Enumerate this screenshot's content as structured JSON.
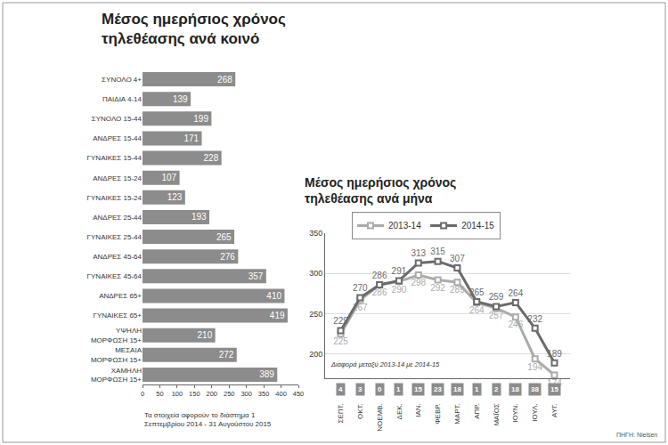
{
  "chart_data": [
    {
      "type": "bar",
      "orientation": "horizontal",
      "title": "Μέσος ημερήσιος χρόνος τηλεθέασης ανά κοινό",
      "note": "Τα στοιχεία αφορούν το διάστημα 1 Σεπτεμβρίου 2014 - 31 Αυγούστου 2015",
      "categories": [
        "ΣΥΝΟΛΟ 4+",
        "ΠΑΙΔΙΑ 4-14",
        "ΣΥΝΟΛΟ 15-44",
        "ΑΝΔΡΕΣ 15-44",
        "ΓΥΝΑΙΚΕΣ 15-44",
        "ΑΝΔΡΕΣ 15-24",
        "ΓΥΝΑΙΚΕΣ 15-24",
        "ΑΝΔΡΕΣ 25-44",
        "ΓΥΝΑΙΚΕΣ 25-44",
        "ΑΝΔΡΕΣ 45-64",
        "ΓΥΝΑΙΚΕΣ 45-64",
        "ΑΝΔΡΕΣ 65+",
        "ΓΥΝΑΙΚΕΣ 65+",
        "ΥΨΗΛΗ ΜΟΡΦΩΣΗ 15+",
        "ΜΕΣΑΙΑ ΜΟΡΦΩΣΗ 15+",
        "ΧΑΜΗΛΗ ΜΟΡΦΩΣΗ 15+"
      ],
      "values": [
        268,
        139,
        199,
        171,
        228,
        107,
        123,
        193,
        265,
        276,
        357,
        410,
        419,
        210,
        272,
        389
      ],
      "color": "#8c8c8c",
      "xlim": [
        0,
        450
      ],
      "xticks": [
        0,
        50,
        100,
        150,
        200,
        250,
        300,
        350,
        400,
        450
      ],
      "grid": false,
      "data_labels": true
    },
    {
      "type": "line",
      "title": "Μέσος ημερήσιος χρόνος τηλεθέασης ανά μήνα",
      "categories": [
        "ΣΕΠΤ.",
        "ΟΚΤ.",
        "ΝΟΕΜΒ.",
        "ΔΕΚ.",
        "ΙΑΝ.",
        "ΦΕΒΡ.",
        "ΜΑΡΤ.",
        "ΑΠΡ.",
        "ΜΑΪΟΣ",
        "ΙΟΥΝ.",
        "ΙΟΥΛ.",
        "ΑΥΓ."
      ],
      "series": [
        {
          "name": "2013-14",
          "color": "#ababab",
          "marker": "square",
          "values": [
            225,
            267,
            286,
            290,
            298,
            292,
            289,
            264,
            257,
            246,
            194,
            174
          ]
        },
        {
          "name": "2014-15",
          "color": "#6b6b6b",
          "marker": "square",
          "values": [
            229,
            270,
            286,
            291,
            313,
            315,
            307,
            265,
            259,
            264,
            232,
            189
          ]
        }
      ],
      "ylim": [
        170,
        350
      ],
      "yticks": [
        200,
        250,
        300,
        350
      ],
      "grid": true,
      "data_labels": true,
      "legend": "top",
      "differences": {
        "label": "Διαφορά μεταξύ 2013-14 με 2014-15",
        "values": [
          4,
          3,
          0,
          1,
          15,
          23,
          18,
          1,
          2,
          18,
          38,
          15
        ]
      }
    }
  ],
  "source": "ΠΗΓΗ: Nielsen"
}
